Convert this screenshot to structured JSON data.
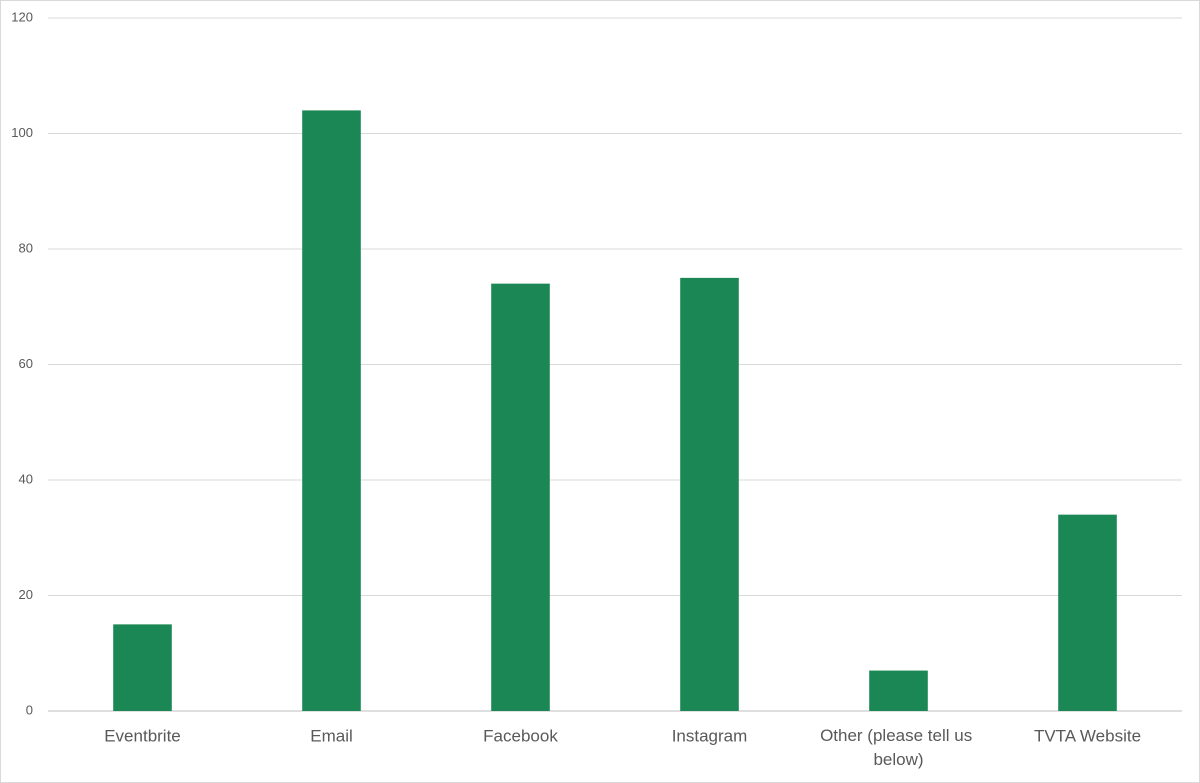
{
  "chart_data": {
    "type": "bar",
    "categories": [
      "Eventbrite",
      "Email",
      "Facebook",
      "Instagram",
      "Other (please tell us below)",
      "TVTA Website"
    ],
    "values": [
      15,
      104,
      74,
      75,
      7,
      34
    ],
    "color": "#1a8754",
    "ylim": [
      0,
      120
    ],
    "yticks": [
      0,
      20,
      40,
      60,
      80,
      100,
      120
    ],
    "grid": true
  }
}
